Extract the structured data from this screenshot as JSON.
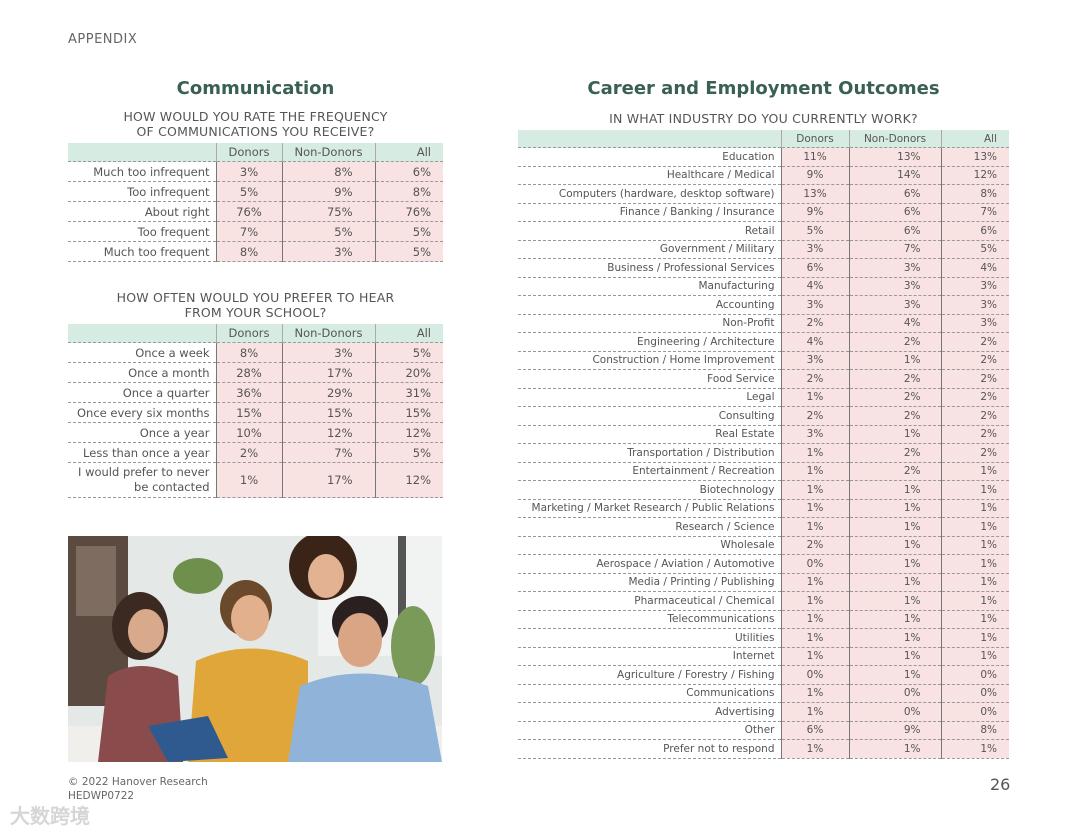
{
  "header": {
    "appendix": "APPENDIX"
  },
  "communication": {
    "title": "Communication",
    "q1": {
      "question_line1": "HOW WOULD YOU RATE THE FREQUENCY",
      "question_line2": "OF COMMUNICATIONS YOU RECEIVE?",
      "columns": [
        "Donors",
        "Non-Donors",
        "All"
      ],
      "rows": [
        {
          "label": "Much too infrequent",
          "donors": "3%",
          "non_donors": "8%",
          "all": "6%"
        },
        {
          "label": "Too infrequent",
          "donors": "5%",
          "non_donors": "9%",
          "all": "8%"
        },
        {
          "label": "About right",
          "donors": "76%",
          "non_donors": "75%",
          "all": "76%"
        },
        {
          "label": "Too frequent",
          "donors": "7%",
          "non_donors": "5%",
          "all": "5%"
        },
        {
          "label": "Much too frequent",
          "donors": "8%",
          "non_donors": "3%",
          "all": "5%"
        }
      ]
    },
    "q2": {
      "question_line1": "HOW OFTEN WOULD YOU PREFER TO HEAR",
      "question_line2": "FROM YOUR SCHOOL?",
      "columns": [
        "Donors",
        "Non-Donors",
        "All"
      ],
      "rows": [
        {
          "label": "Once a week",
          "donors": "8%",
          "non_donors": "3%",
          "all": "5%"
        },
        {
          "label": "Once a month",
          "donors": "28%",
          "non_donors": "17%",
          "all": "20%"
        },
        {
          "label": "Once a quarter",
          "donors": "36%",
          "non_donors": "29%",
          "all": "31%"
        },
        {
          "label": "Once every six months",
          "donors": "15%",
          "non_donors": "15%",
          "all": "15%"
        },
        {
          "label": "Once a year",
          "donors": "10%",
          "non_donors": "12%",
          "all": "12%"
        },
        {
          "label": "Less than once a year",
          "donors": "2%",
          "non_donors": "7%",
          "all": "5%"
        },
        {
          "label": "I would prefer to never be contacted",
          "donors": "1%",
          "non_donors": "17%",
          "all": "12%"
        }
      ]
    }
  },
  "career": {
    "title": "Career and Employment Outcomes",
    "question": "IN WHAT INDUSTRY DO YOU CURRENTLY WORK?",
    "columns": [
      "Donors",
      "Non-Donors",
      "All"
    ],
    "rows": [
      {
        "label": "Education",
        "donors": "11%",
        "non_donors": "13%",
        "all": "13%"
      },
      {
        "label": "Healthcare / Medical",
        "donors": "9%",
        "non_donors": "14%",
        "all": "12%"
      },
      {
        "label": "Computers (hardware, desktop software)",
        "donors": "13%",
        "non_donors": "6%",
        "all": "8%"
      },
      {
        "label": "Finance / Banking / Insurance",
        "donors": "9%",
        "non_donors": "6%",
        "all": "7%"
      },
      {
        "label": "Retail",
        "donors": "5%",
        "non_donors": "6%",
        "all": "6%"
      },
      {
        "label": "Government / Military",
        "donors": "3%",
        "non_donors": "7%",
        "all": "5%"
      },
      {
        "label": "Business / Professional Services",
        "donors": "6%",
        "non_donors": "3%",
        "all": "4%"
      },
      {
        "label": "Manufacturing",
        "donors": "4%",
        "non_donors": "3%",
        "all": "3%"
      },
      {
        "label": "Accounting",
        "donors": "3%",
        "non_donors": "3%",
        "all": "3%"
      },
      {
        "label": "Non-Profit",
        "donors": "2%",
        "non_donors": "4%",
        "all": "3%"
      },
      {
        "label": "Engineering / Architecture",
        "donors": "4%",
        "non_donors": "2%",
        "all": "2%"
      },
      {
        "label": "Construction / Home Improvement",
        "donors": "3%",
        "non_donors": "1%",
        "all": "2%"
      },
      {
        "label": "Food Service",
        "donors": "2%",
        "non_donors": "2%",
        "all": "2%"
      },
      {
        "label": "Legal",
        "donors": "1%",
        "non_donors": "2%",
        "all": "2%"
      },
      {
        "label": "Consulting",
        "donors": "2%",
        "non_donors": "2%",
        "all": "2%"
      },
      {
        "label": "Real Estate",
        "donors": "3%",
        "non_donors": "1%",
        "all": "2%"
      },
      {
        "label": "Transportation / Distribution",
        "donors": "1%",
        "non_donors": "2%",
        "all": "2%"
      },
      {
        "label": "Entertainment / Recreation",
        "donors": "1%",
        "non_donors": "2%",
        "all": "1%"
      },
      {
        "label": "Biotechnology",
        "donors": "1%",
        "non_donors": "1%",
        "all": "1%"
      },
      {
        "label": "Marketing / Market Research / Public Relations",
        "donors": "1%",
        "non_donors": "1%",
        "all": "1%"
      },
      {
        "label": "Research / Science",
        "donors": "1%",
        "non_donors": "1%",
        "all": "1%"
      },
      {
        "label": "Wholesale",
        "donors": "2%",
        "non_donors": "1%",
        "all": "1%"
      },
      {
        "label": "Aerospace / Aviation / Automotive",
        "donors": "0%",
        "non_donors": "1%",
        "all": "1%"
      },
      {
        "label": "Media / Printing / Publishing",
        "donors": "1%",
        "non_donors": "1%",
        "all": "1%"
      },
      {
        "label": "Pharmaceutical / Chemical",
        "donors": "1%",
        "non_donors": "1%",
        "all": "1%"
      },
      {
        "label": "Telecommunications",
        "donors": "1%",
        "non_donors": "1%",
        "all": "1%"
      },
      {
        "label": "Utilities",
        "donors": "1%",
        "non_donors": "1%",
        "all": "1%"
      },
      {
        "label": "Internet",
        "donors": "1%",
        "non_donors": "1%",
        "all": "1%"
      },
      {
        "label": "Agriculture / Forestry / Fishing",
        "donors": "0%",
        "non_donors": "1%",
        "all": "0%"
      },
      {
        "label": "Communications",
        "donors": "1%",
        "non_donors": "0%",
        "all": "0%"
      },
      {
        "label": "Advertising",
        "donors": "1%",
        "non_donors": "0%",
        "all": "0%"
      },
      {
        "label": "Other",
        "donors": "6%",
        "non_donors": "9%",
        "all": "8%"
      },
      {
        "label": "Prefer not to respond",
        "donors": "1%",
        "non_donors": "1%",
        "all": "1%"
      }
    ]
  },
  "footer": {
    "copyright": "© 2022 Hanover Research",
    "code": "HEDWP0722",
    "page_number": "26"
  },
  "watermark": "大数跨境",
  "colors": {
    "accent": "#3a5f55",
    "header_fill": "#d6ece2",
    "cell_fill": "#f8e2e2"
  }
}
